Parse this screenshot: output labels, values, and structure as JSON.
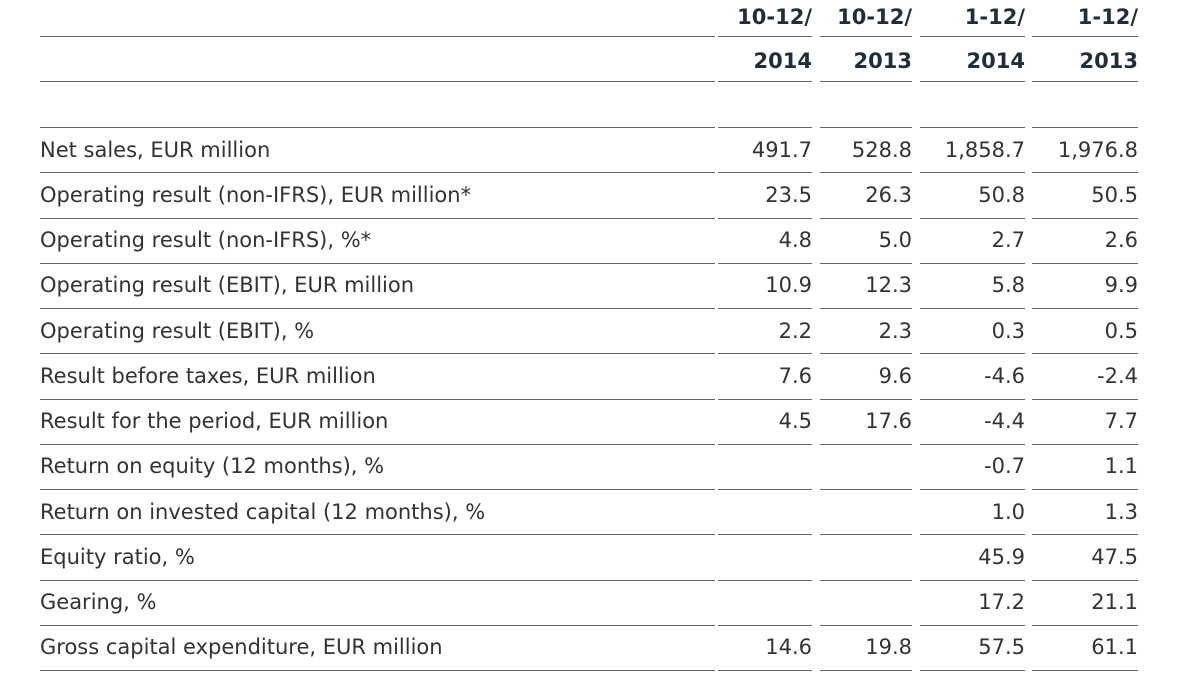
{
  "table": {
    "columns": [
      {
        "line1": "10-12/",
        "line2": "2014"
      },
      {
        "line1": "10-12/",
        "line2": "2013"
      },
      {
        "line1": "1-12/",
        "line2": "2014"
      },
      {
        "line1": "1-12/",
        "line2": "2013"
      }
    ],
    "rows": [
      {
        "label": "Net sales, EUR million",
        "cells": [
          "491.7",
          "528.8",
          "1,858.7",
          "1,976.8"
        ]
      },
      {
        "label": "Operating result (non-IFRS), EUR million*",
        "cells": [
          "23.5",
          "26.3",
          "50.8",
          "50.5"
        ]
      },
      {
        "label": "Operating result (non-IFRS), %*",
        "cells": [
          "4.8",
          "5.0",
          "2.7",
          "2.6"
        ]
      },
      {
        "label": "Operating result (EBIT), EUR million",
        "cells": [
          "10.9",
          "12.3",
          "5.8",
          "9.9"
        ]
      },
      {
        "label": "Operating result (EBIT), %",
        "cells": [
          "2.2",
          "2.3",
          "0.3",
          "0.5"
        ]
      },
      {
        "label": "Result before taxes, EUR million",
        "cells": [
          "7.6",
          "9.6",
          "-4.6",
          "-2.4"
        ]
      },
      {
        "label": "Result for the period, EUR million",
        "cells": [
          "4.5",
          "17.6",
          "-4.4",
          "7.7"
        ]
      },
      {
        "label": "Return on equity (12 months), %",
        "cells": [
          null,
          null,
          "-0.7",
          "1.1"
        ]
      },
      {
        "label": "Return on invested capital (12 months), %",
        "cells": [
          null,
          null,
          "1.0",
          "1.3"
        ]
      },
      {
        "label": "Equity ratio, %",
        "cells": [
          null,
          null,
          "45.9",
          "47.5"
        ]
      },
      {
        "label": "Gearing, %",
        "cells": [
          null,
          null,
          "17.2",
          "21.1"
        ]
      },
      {
        "label": "Gross capital expenditure, EUR million",
        "cells": [
          "14.6",
          "19.8",
          "57.5",
          "61.1"
        ]
      }
    ]
  }
}
